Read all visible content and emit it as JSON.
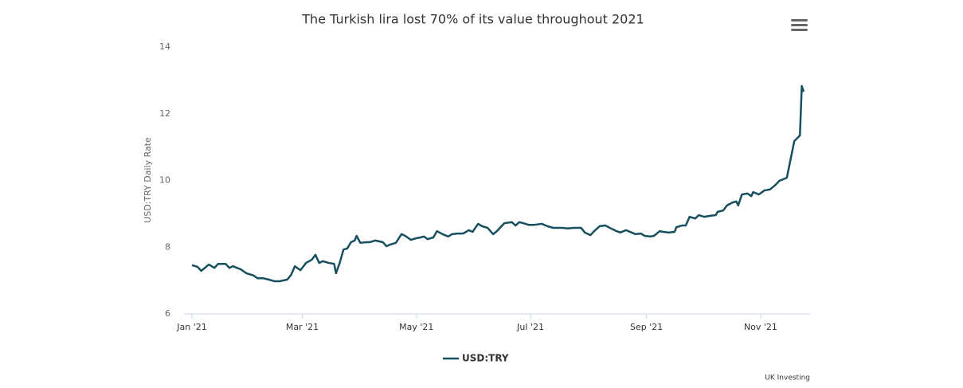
{
  "chart_data": {
    "type": "line",
    "title": "The Turkish lira lost 70% of its value throughout 2021",
    "y_label": "USD:TRY Daily Rate",
    "credit": "UK Investing",
    "x": [
      0,
      3,
      5,
      9,
      12,
      14,
      18,
      20,
      22,
      24,
      26,
      29,
      33,
      35,
      38,
      41,
      44,
      47,
      51,
      53,
      55,
      58,
      61,
      64,
      66,
      68,
      70,
      73,
      76,
      77,
      79,
      81,
      83,
      85,
      87,
      88,
      90,
      93,
      95,
      98,
      102,
      104,
      106,
      109,
      112,
      114,
      117,
      120,
      122,
      124,
      126,
      129,
      131,
      134,
      137,
      139,
      142,
      145,
      148,
      150,
      153,
      155,
      158,
      161,
      163,
      167,
      171,
      173,
      175,
      177,
      180,
      183,
      187,
      190,
      193,
      198,
      201,
      204,
      208,
      210,
      213,
      215,
      218,
      221,
      224,
      227,
      229,
      232,
      235,
      237,
      240,
      242,
      245,
      247,
      250,
      252,
      255,
      258,
      259,
      262,
      264,
      266,
      269,
      271,
      274,
      277,
      280,
      281,
      284,
      286,
      289,
      291,
      292,
      294,
      297,
      299,
      300,
      303,
      306,
      309,
      312,
      314,
      318,
      320,
      322,
      325,
      326,
      327
    ],
    "series": [
      {
        "name": "USD:TRY",
        "color": "#174f5f",
        "values": [
          7.46,
          7.41,
          7.29,
          7.48,
          7.38,
          7.5,
          7.5,
          7.38,
          7.43,
          7.38,
          7.34,
          7.22,
          7.15,
          7.07,
          7.07,
          7.03,
          6.98,
          6.98,
          7.03,
          7.17,
          7.43,
          7.31,
          7.53,
          7.62,
          7.77,
          7.53,
          7.58,
          7.53,
          7.5,
          7.22,
          7.53,
          7.93,
          7.96,
          8.15,
          8.2,
          8.34,
          8.13,
          8.15,
          8.15,
          8.2,
          8.15,
          8.03,
          8.08,
          8.13,
          8.39,
          8.34,
          8.22,
          8.27,
          8.29,
          8.32,
          8.24,
          8.29,
          8.48,
          8.39,
          8.32,
          8.39,
          8.41,
          8.41,
          8.51,
          8.46,
          8.7,
          8.63,
          8.58,
          8.39,
          8.48,
          8.72,
          8.75,
          8.65,
          8.75,
          8.72,
          8.67,
          8.67,
          8.7,
          8.63,
          8.58,
          8.58,
          8.56,
          8.58,
          8.58,
          8.44,
          8.36,
          8.48,
          8.63,
          8.65,
          8.56,
          8.48,
          8.44,
          8.51,
          8.44,
          8.39,
          8.41,
          8.34,
          8.32,
          8.34,
          8.48,
          8.46,
          8.44,
          8.46,
          8.6,
          8.65,
          8.65,
          8.91,
          8.86,
          8.96,
          8.91,
          8.94,
          8.96,
          9.06,
          9.1,
          9.25,
          9.34,
          9.37,
          9.25,
          9.58,
          9.61,
          9.53,
          9.65,
          9.58,
          9.7,
          9.73,
          9.87,
          9.99,
          10.08,
          10.63,
          11.18,
          11.35,
          12.83,
          12.66
        ]
      }
    ],
    "xlim": [
      0,
      330
    ],
    "xticks": [
      {
        "value": 0,
        "label": "Jan '21"
      },
      {
        "value": 59,
        "label": "Mar '21"
      },
      {
        "value": 120,
        "label": "May '21"
      },
      {
        "value": 181,
        "label": "Jul '21"
      },
      {
        "value": 243,
        "label": "Sep '21"
      },
      {
        "value": 304,
        "label": "Nov '21"
      }
    ],
    "ylim": [
      6,
      14
    ],
    "yticks": [
      6,
      8,
      10,
      12,
      14
    ],
    "grid": false
  }
}
